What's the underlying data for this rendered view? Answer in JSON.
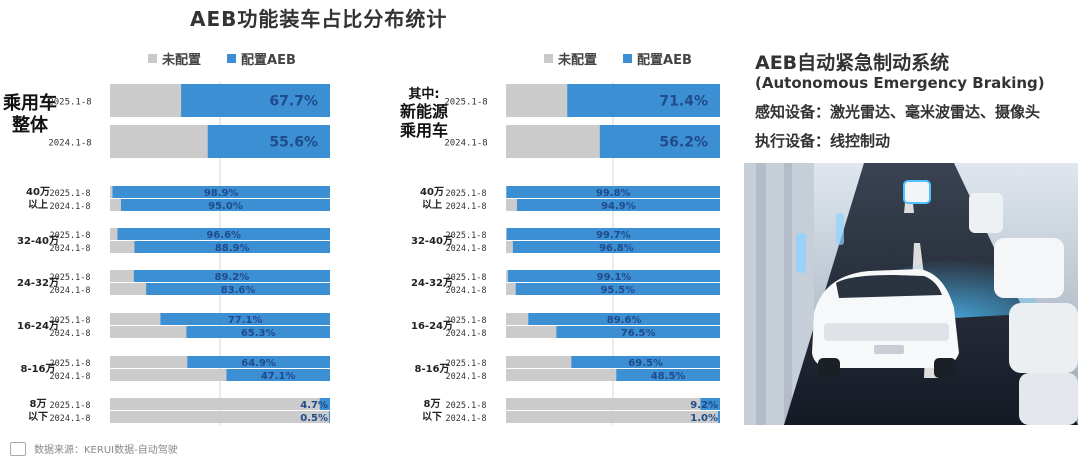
{
  "title": "AEB功能装车占比分布统计",
  "legend": {
    "none": "未配置",
    "aeb": "配置AEB"
  },
  "colors": {
    "blue": "#3d8fd4",
    "gray": "#cbcbcb",
    "blue_text": "#1f4b8a"
  },
  "info": {
    "title": "AEB自动紧急制动系统",
    "subtitle": "(Autonomous Emergency Braking)",
    "sensing": "感知设备：激光雷达、毫米波雷达、摄像头",
    "actuation": "执行设备：线控制动"
  },
  "footer": "数据来源：KERUI数据-自动驾驶",
  "chart_data": [
    {
      "type": "bar",
      "orientation": "horizontal-stacked",
      "group_title": [
        "乘用车",
        "整体"
      ],
      "total": [
        {
          "period": "2025.1-8",
          "aeb": 67.7,
          "label": "67.7%"
        },
        {
          "period": "2024.1-8",
          "aeb": 55.6,
          "label": "55.6%"
        }
      ],
      "categories": [
        {
          "name": [
            "40万",
            "以上"
          ],
          "rows": [
            {
              "period": "2025.1-8",
              "aeb": 98.9,
              "label": "98.9%"
            },
            {
              "period": "2024.1-8",
              "aeb": 95.0,
              "label": "95.0%"
            }
          ]
        },
        {
          "name": [
            "32-40万"
          ],
          "rows": [
            {
              "period": "2025.1-8",
              "aeb": 96.6,
              "label": "96.6%"
            },
            {
              "period": "2024.1-8",
              "aeb": 88.9,
              "label": "88.9%"
            }
          ]
        },
        {
          "name": [
            "24-32万"
          ],
          "rows": [
            {
              "period": "2025.1-8",
              "aeb": 89.2,
              "label": "89.2%"
            },
            {
              "period": "2024.1-8",
              "aeb": 83.6,
              "label": "83.6%"
            }
          ]
        },
        {
          "name": [
            "16-24万"
          ],
          "rows": [
            {
              "period": "2025.1-8",
              "aeb": 77.1,
              "label": "77.1%"
            },
            {
              "period": "2024.1-8",
              "aeb": 65.3,
              "label": "65.3%"
            }
          ]
        },
        {
          "name": [
            "8-16万"
          ],
          "rows": [
            {
              "period": "2025.1-8",
              "aeb": 64.9,
              "label": "64.9%"
            },
            {
              "period": "2024.1-8",
              "aeb": 47.1,
              "label": "47.1%"
            }
          ]
        },
        {
          "name": [
            "8万",
            "以下"
          ],
          "rows": [
            {
              "period": "2025.1-8",
              "aeb": 4.7,
              "label": "4.7%"
            },
            {
              "period": "2024.1-8",
              "aeb": 0.5,
              "label": "0.5%"
            }
          ]
        }
      ]
    },
    {
      "type": "bar",
      "orientation": "horizontal-stacked",
      "group_title": [
        "其中:",
        "新能源",
        "乘用车"
      ],
      "total": [
        {
          "period": "2025.1-8",
          "aeb": 71.4,
          "label": "71.4%"
        },
        {
          "period": "2024.1-8",
          "aeb": 56.2,
          "label": "56.2%"
        }
      ],
      "categories": [
        {
          "name": [
            "40万",
            "以上"
          ],
          "rows": [
            {
              "period": "2025.1-8",
              "aeb": 99.8,
              "label": "99.8%"
            },
            {
              "period": "2024.1-8",
              "aeb": 94.9,
              "label": "94.9%"
            }
          ]
        },
        {
          "name": [
            "32-40万"
          ],
          "rows": [
            {
              "period": "2025.1-8",
              "aeb": 99.7,
              "label": "99.7%"
            },
            {
              "period": "2024.1-8",
              "aeb": 96.8,
              "label": "96.8%"
            }
          ]
        },
        {
          "name": [
            "24-32万"
          ],
          "rows": [
            {
              "period": "2025.1-8",
              "aeb": 99.1,
              "label": "99.1%"
            },
            {
              "period": "2024.1-8",
              "aeb": 95.5,
              "label": "95.5%"
            }
          ]
        },
        {
          "name": [
            "16-24万"
          ],
          "rows": [
            {
              "period": "2025.1-8",
              "aeb": 89.6,
              "label": "89.6%"
            },
            {
              "period": "2024.1-8",
              "aeb": 76.5,
              "label": "76.5%"
            }
          ]
        },
        {
          "name": [
            "8-16万"
          ],
          "rows": [
            {
              "period": "2025.1-8",
              "aeb": 69.5,
              "label": "69.5%"
            },
            {
              "period": "2024.1-8",
              "aeb": 48.5,
              "label": "48.5%"
            }
          ]
        },
        {
          "name": [
            "8万",
            "以下"
          ],
          "rows": [
            {
              "period": "2025.1-8",
              "aeb": 9.2,
              "label": "9.2%"
            },
            {
              "period": "2024.1-8",
              "aeb": 1.0,
              "label": "1.0%"
            }
          ]
        }
      ]
    }
  ]
}
